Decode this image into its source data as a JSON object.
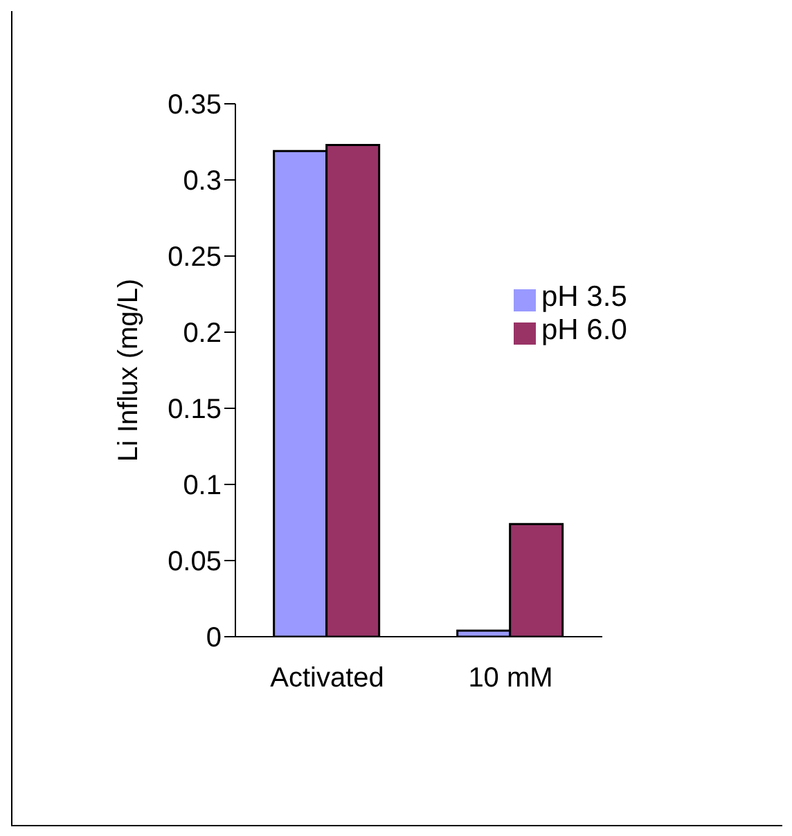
{
  "chart_data": {
    "type": "bar",
    "ylabel": "Li Influx (mg/L)",
    "categories": [
      "Activated",
      "10 mM"
    ],
    "series": [
      {
        "name": "pH 3.5",
        "color": "#9999ff",
        "values": [
          0.319,
          0.004
        ]
      },
      {
        "name": "pH 6.0",
        "color": "#993366",
        "values": [
          0.323,
          0.074
        ]
      }
    ],
    "ylim": [
      0,
      0.35
    ],
    "yticks": [
      0,
      0.05,
      0.1,
      0.15,
      0.2,
      0.25,
      0.3,
      0.35
    ],
    "grid": false,
    "legend": "right"
  }
}
